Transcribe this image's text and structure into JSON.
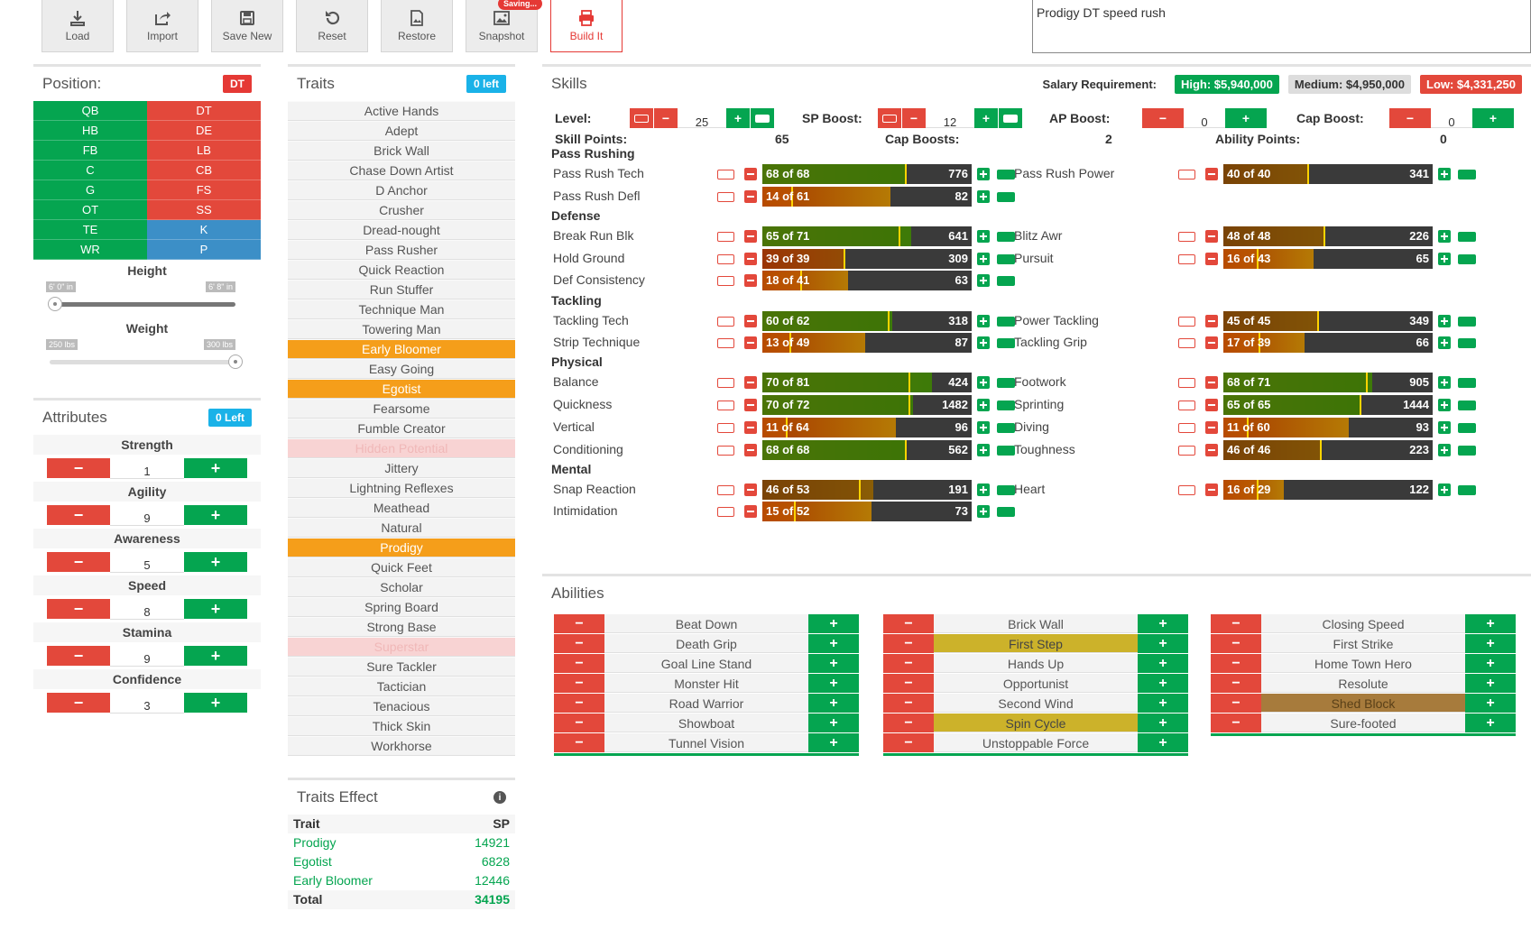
{
  "toolbar": {
    "buttons": [
      {
        "label": "Load",
        "icon": "download-icon"
      },
      {
        "label": "Import",
        "icon": "share-icon"
      },
      {
        "label": "Save New",
        "icon": "save-icon"
      },
      {
        "label": "Reset",
        "icon": "reset-icon"
      },
      {
        "label": "Restore",
        "icon": "restore-icon"
      },
      {
        "label": "Snapshot",
        "icon": "image-icon"
      },
      {
        "label": "Build It",
        "icon": "printer-icon"
      }
    ],
    "saving_badge": "Saving...",
    "build_name": "Prodigy DT speed rush"
  },
  "position": {
    "title": "Position:",
    "selected": "DT",
    "left": [
      "QB",
      "HB",
      "FB",
      "C",
      "G",
      "OT",
      "TE",
      "WR"
    ],
    "right": [
      "DT",
      "DE",
      "LB",
      "CB",
      "FS",
      "SS",
      "K",
      "P"
    ],
    "height": {
      "label": "Height",
      "min": "6' 0\" in",
      "max": "6' 8\" in"
    },
    "weight": {
      "label": "Weight",
      "min": "250 lbs",
      "max": "300 lbs"
    }
  },
  "attributes": {
    "title": "Attributes",
    "left_badge": "0 Left",
    "items": [
      {
        "name": "Strength",
        "value": "1"
      },
      {
        "name": "Agility",
        "value": "9"
      },
      {
        "name": "Awareness",
        "value": "5"
      },
      {
        "name": "Speed",
        "value": "8"
      },
      {
        "name": "Stamina",
        "value": "9"
      },
      {
        "name": "Confidence",
        "value": "3"
      }
    ]
  },
  "traits": {
    "title": "Traits",
    "left_badge": "0 left",
    "items": [
      {
        "name": "Active Hands",
        "state": "normal"
      },
      {
        "name": "Adept",
        "state": "normal"
      },
      {
        "name": "Brick Wall",
        "state": "normal"
      },
      {
        "name": "Chase Down Artist",
        "state": "normal"
      },
      {
        "name": "D Anchor",
        "state": "normal"
      },
      {
        "name": "Crusher",
        "state": "normal"
      },
      {
        "name": "Dread-nought",
        "state": "normal"
      },
      {
        "name": "Pass Rusher",
        "state": "normal"
      },
      {
        "name": "Quick Reaction",
        "state": "normal"
      },
      {
        "name": "Run Stuffer",
        "state": "normal"
      },
      {
        "name": "Technique Man",
        "state": "normal"
      },
      {
        "name": "Towering Man",
        "state": "normal"
      },
      {
        "name": "Early Bloomer",
        "state": "selected"
      },
      {
        "name": "Easy Going",
        "state": "normal"
      },
      {
        "name": "Egotist",
        "state": "selected"
      },
      {
        "name": "Fearsome",
        "state": "normal"
      },
      {
        "name": "Fumble Creator",
        "state": "normal"
      },
      {
        "name": "Hidden Potential",
        "state": "disabled"
      },
      {
        "name": "Jittery",
        "state": "normal"
      },
      {
        "name": "Lightning Reflexes",
        "state": "normal"
      },
      {
        "name": "Meathead",
        "state": "normal"
      },
      {
        "name": "Natural",
        "state": "normal"
      },
      {
        "name": "Prodigy",
        "state": "selected"
      },
      {
        "name": "Quick Feet",
        "state": "normal"
      },
      {
        "name": "Scholar",
        "state": "normal"
      },
      {
        "name": "Spring Board",
        "state": "normal"
      },
      {
        "name": "Strong Base",
        "state": "normal"
      },
      {
        "name": "Superstar",
        "state": "disabled"
      },
      {
        "name": "Sure Tackler",
        "state": "normal"
      },
      {
        "name": "Tactician",
        "state": "normal"
      },
      {
        "name": "Tenacious",
        "state": "normal"
      },
      {
        "name": "Thick Skin",
        "state": "normal"
      },
      {
        "name": "Workhorse",
        "state": "normal"
      }
    ]
  },
  "traits_effect": {
    "title": "Traits Effect",
    "col_trait": "Trait",
    "col_sp": "SP",
    "rows": [
      {
        "trait": "Prodigy",
        "sp": "14921"
      },
      {
        "trait": "Egotist",
        "sp": "6828"
      },
      {
        "trait": "Early Bloomer",
        "sp": "12446"
      }
    ],
    "total_label": "Total",
    "total_sp": "34195"
  },
  "skills": {
    "title": "Skills",
    "salary_label": "Salary Requirement:",
    "salary_high": "High: $5,940,000",
    "salary_med": "Medium: $4,950,000",
    "salary_low": "Low: $4,331,250",
    "level_label": "Level:",
    "level_value": "25",
    "sp_boost_label": "SP Boost:",
    "sp_boost_value": "12",
    "ap_boost_label": "AP Boost:",
    "ap_boost_value": "0",
    "cap_boost_label": "Cap Boost:",
    "cap_boost_value": "0",
    "skill_points_label": "Skill Points:",
    "skill_points_value": "65",
    "cap_boosts_label": "Cap Boosts:",
    "cap_boosts_value": "2",
    "ability_points_label": "Ability Points:",
    "ability_points_value": "0",
    "categories": [
      {
        "name": "Pass Rushing",
        "skills": [
          {
            "name": "Pass Rush Tech",
            "cur": 68,
            "cap": 68,
            "cost": "776",
            "col": 0,
            "row": 0
          },
          {
            "name": "Pass Rush Defl",
            "cur": 14,
            "cap": 61,
            "cost": "82",
            "col": 0,
            "row": 1
          },
          {
            "name": "Pass Rush Power",
            "cur": 40,
            "cap": 40,
            "cost": "341",
            "col": 1,
            "row": 0
          }
        ]
      },
      {
        "name": "Defense",
        "skills": [
          {
            "name": "Break Run Blk",
            "cur": 65,
            "cap": 71,
            "cost": "641",
            "col": 0,
            "row": 0
          },
          {
            "name": "Hold Ground",
            "cur": 39,
            "cap": 39,
            "cost": "309",
            "col": 0,
            "row": 1
          },
          {
            "name": "Def Consistency",
            "cur": 18,
            "cap": 41,
            "cost": "63",
            "col": 0,
            "row": 2
          },
          {
            "name": "Blitz Awr",
            "cur": 48,
            "cap": 48,
            "cost": "226",
            "col": 1,
            "row": 0
          },
          {
            "name": "Pursuit",
            "cur": 16,
            "cap": 43,
            "cost": "65",
            "col": 1,
            "row": 1
          }
        ]
      },
      {
        "name": "Tackling",
        "skills": [
          {
            "name": "Tackling Tech",
            "cur": 60,
            "cap": 62,
            "cost": "318",
            "col": 0,
            "row": 0
          },
          {
            "name": "Strip Technique",
            "cur": 13,
            "cap": 49,
            "cost": "87",
            "col": 0,
            "row": 1
          },
          {
            "name": "Power Tackling",
            "cur": 45,
            "cap": 45,
            "cost": "349",
            "col": 1,
            "row": 0
          },
          {
            "name": "Tackling Grip",
            "cur": 17,
            "cap": 39,
            "cost": "66",
            "col": 1,
            "row": 1
          }
        ]
      },
      {
        "name": "Physical",
        "skills": [
          {
            "name": "Balance",
            "cur": 70,
            "cap": 81,
            "cost": "424",
            "col": 0,
            "row": 0
          },
          {
            "name": "Quickness",
            "cur": 70,
            "cap": 72,
            "cost": "1482",
            "col": 0,
            "row": 1
          },
          {
            "name": "Vertical",
            "cur": 11,
            "cap": 64,
            "cost": "96",
            "col": 0,
            "row": 2
          },
          {
            "name": "Conditioning",
            "cur": 68,
            "cap": 68,
            "cost": "562",
            "col": 0,
            "row": 3
          },
          {
            "name": "Footwork",
            "cur": 68,
            "cap": 71,
            "cost": "905",
            "col": 1,
            "row": 0
          },
          {
            "name": "Sprinting",
            "cur": 65,
            "cap": 65,
            "cost": "1444",
            "col": 1,
            "row": 1
          },
          {
            "name": "Diving",
            "cur": 11,
            "cap": 60,
            "cost": "93",
            "col": 1,
            "row": 2
          },
          {
            "name": "Toughness",
            "cur": 46,
            "cap": 46,
            "cost": "223",
            "col": 1,
            "row": 3
          }
        ]
      },
      {
        "name": "Mental",
        "skills": [
          {
            "name": "Snap Reaction",
            "cur": 46,
            "cap": 53,
            "cost": "191",
            "col": 0,
            "row": 0
          },
          {
            "name": "Intimidation",
            "cur": 15,
            "cap": 52,
            "cost": "73",
            "col": 0,
            "row": 1
          },
          {
            "name": "Heart",
            "cur": 16,
            "cap": 29,
            "cost": "122",
            "col": 1,
            "row": 0
          }
        ]
      }
    ]
  },
  "abilities": {
    "title": "Abilities",
    "columns": [
      [
        {
          "name": "Beat Down",
          "state": "normal"
        },
        {
          "name": "Death Grip",
          "state": "normal"
        },
        {
          "name": "Goal Line Stand",
          "state": "normal"
        },
        {
          "name": "Monster Hit",
          "state": "normal"
        },
        {
          "name": "Road Warrior",
          "state": "normal"
        },
        {
          "name": "Showboat",
          "state": "normal"
        },
        {
          "name": "Tunnel Vision",
          "state": "normal"
        }
      ],
      [
        {
          "name": "Brick Wall",
          "state": "normal"
        },
        {
          "name": "First Step",
          "state": "gold"
        },
        {
          "name": "Hands Up",
          "state": "normal"
        },
        {
          "name": "Opportunist",
          "state": "normal"
        },
        {
          "name": "Second Wind",
          "state": "normal"
        },
        {
          "name": "Spin Cycle",
          "state": "gold"
        },
        {
          "name": "Unstoppable Force",
          "state": "normal"
        }
      ],
      [
        {
          "name": "Closing Speed",
          "state": "normal"
        },
        {
          "name": "First Strike",
          "state": "normal"
        },
        {
          "name": "Home Town Hero",
          "state": "normal"
        },
        {
          "name": "Resolute",
          "state": "normal"
        },
        {
          "name": "Shed Block",
          "state": "brown"
        },
        {
          "name": "Sure-footed",
          "state": "normal"
        }
      ]
    ]
  }
}
